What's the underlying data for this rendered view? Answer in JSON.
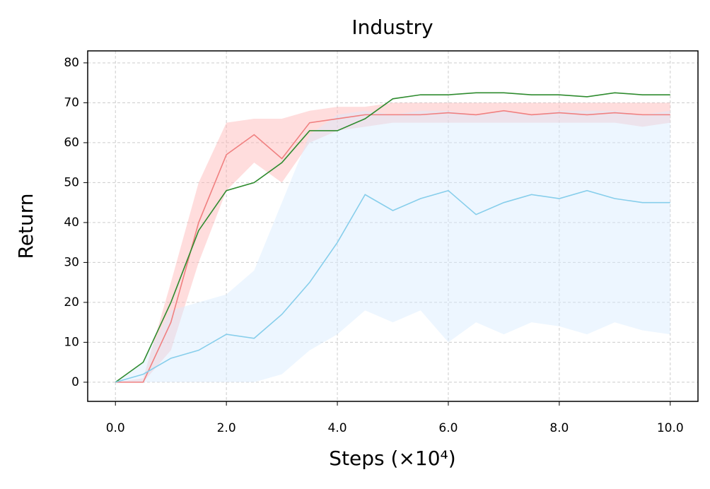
{
  "chart_data": {
    "type": "line",
    "title": "Industry",
    "x_label": "Steps (×10⁴)",
    "y_label": "Return",
    "x": [
      0,
      0.5,
      1,
      1.5,
      2,
      2.5,
      3,
      3.5,
      4,
      4.5,
      5,
      5.5,
      6,
      6.5,
      7,
      7.5,
      8,
      8.5,
      9,
      9.5,
      10
    ],
    "series": [
      {
        "color": "#f08080",
        "band_color": "#ffb3b3",
        "values": [
          0,
          0,
          15,
          40,
          57,
          62,
          56,
          65,
          66,
          67,
          67,
          67,
          67.5,
          67,
          68,
          67,
          67.5,
          67,
          67.5,
          67,
          67
        ],
        "lower": [
          0,
          0,
          8,
          30,
          48,
          55,
          50,
          60,
          63,
          64,
          65,
          65,
          65,
          65,
          65,
          65,
          65,
          65,
          65,
          64,
          65
        ],
        "upper": [
          0,
          1,
          25,
          50,
          65,
          66,
          66,
          68,
          69,
          69,
          70,
          70,
          70,
          70,
          70,
          70,
          70,
          70,
          70,
          70,
          70
        ]
      },
      {
        "color": "#2e8b2e",
        "values": [
          0,
          5,
          20,
          38,
          48,
          50,
          55,
          63,
          63,
          66,
          71,
          72,
          72,
          72.5,
          72.5,
          72,
          72,
          71.5,
          72.5,
          72,
          72
        ]
      },
      {
        "color": "#87ceeb",
        "band_color": "#d6ebff",
        "values": [
          0,
          2,
          6,
          8,
          12,
          11,
          17,
          25,
          35,
          47,
          43,
          46,
          48,
          42,
          45,
          47,
          46,
          48,
          46,
          45,
          45
        ],
        "lower": [
          0,
          0,
          0,
          0,
          0,
          0,
          2,
          8,
          12,
          18,
          15,
          18,
          10,
          15,
          12,
          15,
          14,
          12,
          15,
          13,
          12
        ],
        "upper": [
          0,
          5,
          18,
          20,
          22,
          28,
          45,
          62,
          67,
          68,
          67,
          68,
          68,
          67,
          68,
          67,
          68,
          68,
          68,
          67,
          68
        ]
      }
    ],
    "xlim": [
      -0.5,
      10.5
    ],
    "ylim": [
      -4.8,
      83
    ],
    "xticks": [
      {
        "value": 0,
        "label": "0.0"
      },
      {
        "value": 2,
        "label": "2.0"
      },
      {
        "value": 4,
        "label": "4.0"
      },
      {
        "value": 6,
        "label": "6.0"
      },
      {
        "value": 8,
        "label": "8.0"
      },
      {
        "value": 10,
        "label": "10.0"
      }
    ],
    "yticks": [
      0,
      10,
      20,
      30,
      40,
      50,
      60,
      70,
      80
    ],
    "grid": true
  }
}
